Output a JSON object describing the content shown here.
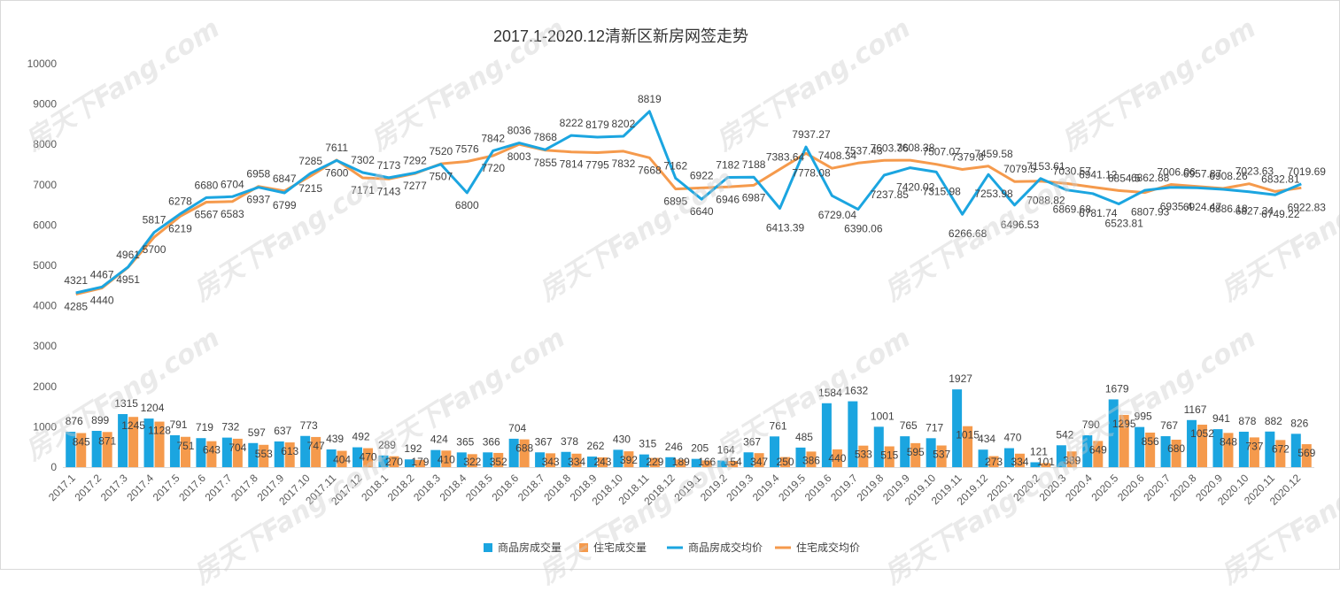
{
  "chart_data": {
    "title": "2017.1-2020.12清新区新房网签走势",
    "type": "bar+line",
    "categories": [
      "2017.1",
      "2017.2",
      "2017.3",
      "2017.4",
      "2017.5",
      "2017.6",
      "2017.7",
      "2017.8",
      "2017.9",
      "2017.10",
      "2017.11",
      "2017.12",
      "2018.1",
      "2018.2",
      "2018.3",
      "2018.4",
      "2018.5",
      "2018.6",
      "2018.7",
      "2018.8",
      "2018.9",
      "2018.10",
      "2018.11",
      "2018.12",
      "2019.1",
      "2019.2",
      "2019.3",
      "2019.4",
      "2019.5",
      "2019.6",
      "2019.7",
      "2019.8",
      "2019.9",
      "2019.10",
      "2019.11",
      "2019.12",
      "2020.1",
      "2020.2",
      "2020.3",
      "2020.4",
      "2020.5",
      "2020.6",
      "2020.7",
      "2020.8",
      "2020.9",
      "2020.10",
      "2020.11",
      "2020.12"
    ],
    "ylim": [
      0,
      10000
    ],
    "yticks": [
      0,
      1000,
      2000,
      3000,
      4000,
      5000,
      6000,
      7000,
      8000,
      9000,
      10000
    ],
    "grid": false,
    "legend_position": "bottom",
    "colors": {
      "commercial": "#1ba5e0",
      "residential": "#f59a4c"
    },
    "series": [
      {
        "name": "商品房成交量",
        "type": "bar",
        "values": [
          876,
          899,
          1315,
          1204,
          791,
          719,
          732,
          597,
          637,
          773,
          439,
          492,
          289,
          192,
          424,
          365,
          366,
          704,
          367,
          378,
          262,
          430,
          315,
          246,
          205,
          164,
          367,
          761,
          485,
          1584,
          1632,
          1001,
          765,
          717,
          1927,
          434,
          470,
          121,
          542,
          790,
          1679,
          995,
          767,
          1167,
          941,
          878,
          882,
          826
        ]
      },
      {
        "name": "住宅成交量",
        "type": "bar",
        "values": [
          845,
          871,
          1245,
          1128,
          751,
          643,
          704,
          553,
          613,
          747,
          404,
          470,
          270,
          179,
          410,
          322,
          352,
          688,
          343,
          334,
          243,
          392,
          229,
          189,
          166,
          154,
          347,
          250,
          386,
          440,
          533,
          515,
          595,
          537,
          1015,
          273,
          334,
          101,
          389,
          649,
          1295,
          856,
          680,
          1052,
          848,
          737,
          672,
          569
        ]
      },
      {
        "name": "商品房成交均价",
        "type": "line",
        "values": [
          4321,
          4467,
          4961,
          5817,
          6278,
          6680,
          6704,
          6937,
          6799,
          7285,
          7600,
          7302,
          7173,
          7292,
          7507,
          6800,
          7842,
          8036,
          7868,
          8222,
          8179,
          8202,
          8819,
          7162,
          6640,
          7182,
          7188,
          6413.39,
          7937.27,
          6729.04,
          6390.06,
          7237.85,
          7420.02,
          7315.98,
          6266.68,
          7253.98,
          6496.53,
          7153.61,
          6869.68,
          6781.74,
          6523.81,
          6862.88,
          6935.4,
          6924.47,
          6886.18,
          6827.34,
          6749.22,
          7019.69
        ]
      },
      {
        "name": "住宅成交均价",
        "type": "line",
        "values": [
          4285,
          4440,
          4951,
          5700,
          6219,
          6567,
          6583,
          6958,
          6847,
          7215,
          7611,
          7171,
          7143,
          7277,
          7520,
          7576,
          7720,
          8003,
          7855,
          7814,
          7795,
          7832,
          7668,
          6895,
          6922,
          6946,
          6987,
          7383.64,
          7778.08,
          7408.34,
          7537.43,
          7603.36,
          7608.38,
          7507.07,
          7379.8,
          7459.58,
          7079.5,
          7088.82,
          7030.57,
          6941.12,
          6854.5,
          6807.93,
          7006.06,
          6957.87,
          6908.26,
          7023.63,
          6832.81,
          6922.83
        ]
      }
    ]
  },
  "watermark": {
    "text": "房天下Fang.com"
  }
}
